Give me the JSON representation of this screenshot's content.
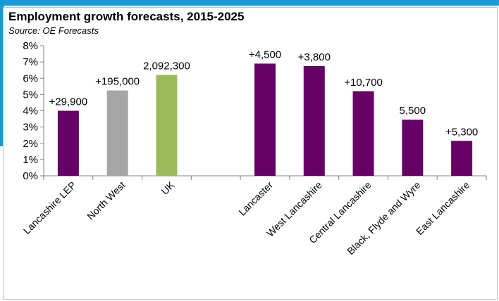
{
  "chart_data": {
    "type": "bar",
    "title": "Employment growth forecasts,  2015-2025",
    "subtitle": "Source: OE Forecasts",
    "categories": [
      "Lancashire LEP",
      "North West",
      "UK",
      "",
      "Lancaster",
      "West Lancashire",
      "Central Lancashire",
      "Black, Flyde and Wyre",
      "East Lancashire"
    ],
    "values": [
      4.0,
      5.25,
      6.2,
      null,
      6.9,
      6.75,
      5.2,
      3.45,
      2.15
    ],
    "data_labels": [
      "+29,900",
      "+195,000",
      "2,092,300",
      "",
      "+4,500",
      "+3,800",
      "+10,700",
      "5,500",
      "+5,300"
    ],
    "bar_colors": [
      "#660066",
      "#a6a6a6",
      "#9bbb59",
      "",
      "#660066",
      "#660066",
      "#660066",
      "#660066",
      "#660066"
    ],
    "y_ticks": [
      "0%",
      "1%",
      "2%",
      "3%",
      "4%",
      "5%",
      "6%",
      "7%",
      "8%"
    ],
    "ylim": [
      0,
      8
    ],
    "grid": false,
    "legend": "none"
  }
}
